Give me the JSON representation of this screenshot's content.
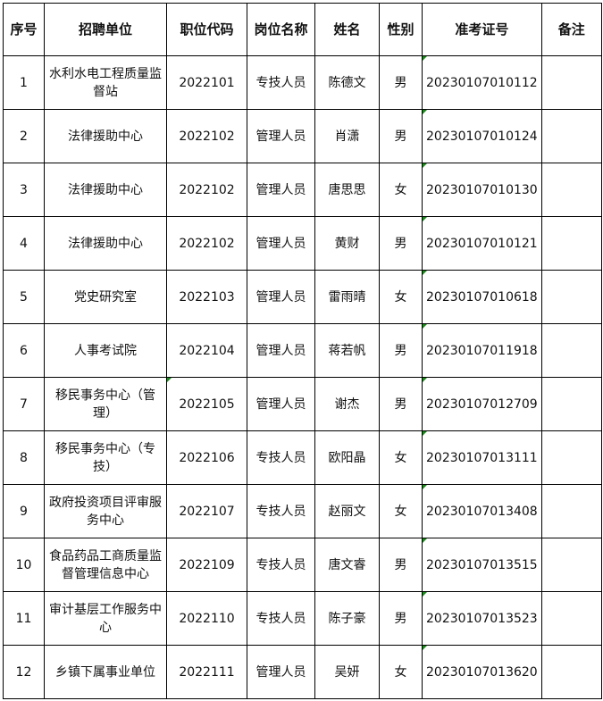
{
  "headers": [
    "序号",
    "招聘单位",
    "职位代码",
    "岗位名称",
    "姓名",
    "性别",
    "准考证号",
    "备注"
  ],
  "rows": [
    {
      "no": "1",
      "unit": "水利水电工程质量监督站",
      "code": "2022101",
      "post": "专技人员",
      "name": "陈德文",
      "sex": "男",
      "exam_id": "20230107010112",
      "note": ""
    },
    {
      "no": "2",
      "unit": "法律援助中心",
      "code": "2022102",
      "post": "管理人员",
      "name": "肖潇",
      "sex": "男",
      "exam_id": "20230107010124",
      "note": ""
    },
    {
      "no": "3",
      "unit": "法律援助中心",
      "code": "2022102",
      "post": "管理人员",
      "name": "唐思思",
      "sex": "女",
      "exam_id": "20230107010130",
      "note": ""
    },
    {
      "no": "4",
      "unit": "法律援助中心",
      "code": "2022102",
      "post": "管理人员",
      "name": "黄财",
      "sex": "男",
      "exam_id": "20230107010121",
      "note": ""
    },
    {
      "no": "5",
      "unit": "党史研究室",
      "code": "2022103",
      "post": "管理人员",
      "name": "雷雨晴",
      "sex": "女",
      "exam_id": "20230107010618",
      "note": ""
    },
    {
      "no": "6",
      "unit": "人事考试院",
      "code": "2022104",
      "post": "管理人员",
      "name": "蒋若帆",
      "sex": "男",
      "exam_id": "20230107011918",
      "note": ""
    },
    {
      "no": "7",
      "unit": "移民事务中心（管理）",
      "code": "2022105",
      "post": "管理人员",
      "name": "谢杰",
      "sex": "男",
      "exam_id": "20230107012709",
      "note": ""
    },
    {
      "no": "8",
      "unit": "移民事务中心（专技）",
      "code": "2022106",
      "post": "专技人员",
      "name": "欧阳晶",
      "sex": "女",
      "exam_id": "20230107013111",
      "note": ""
    },
    {
      "no": "9",
      "unit": "政府投资项目评审服务中心",
      "code": "2022107",
      "post": "专技人员",
      "name": "赵丽文",
      "sex": "女",
      "exam_id": "20230107013408",
      "note": ""
    },
    {
      "no": "10",
      "unit": "食品药品工商质量监督管理信息中心",
      "code": "2022109",
      "post": "专技人员",
      "name": "唐文睿",
      "sex": "男",
      "exam_id": "20230107013515",
      "note": ""
    },
    {
      "no": "11",
      "unit": "审计基层工作服务中心",
      "code": "2022110",
      "post": "专技人员",
      "name": "陈子豪",
      "sex": "男",
      "exam_id": "20230107013523",
      "note": ""
    },
    {
      "no": "12",
      "unit": "乡镇下属事业单位",
      "code": "2022111",
      "post": "管理人员",
      "name": "吴妍",
      "sex": "女",
      "exam_id": "20230107013620",
      "note": ""
    }
  ],
  "colors": {
    "border": "#000000",
    "cell_marker": "#1a8a1a"
  }
}
